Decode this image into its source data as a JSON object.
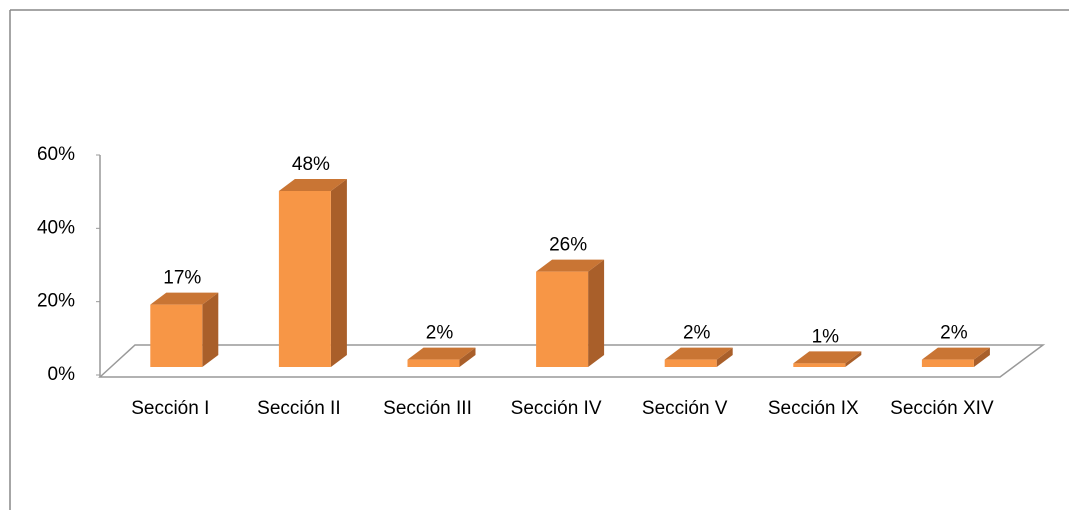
{
  "chart_data": {
    "type": "bar3d",
    "categories": [
      "Sección I",
      "Sección II",
      "Sección III",
      "Sección IV",
      "Sección V",
      "Sección IX",
      "Sección XIV"
    ],
    "values": [
      17,
      48,
      2,
      26,
      2,
      1,
      2
    ],
    "value_labels": [
      "17%",
      "48%",
      "2%",
      "26%",
      "2%",
      "1%",
      "2%"
    ],
    "color": "#f79646",
    "ylim": [
      0,
      60
    ],
    "yticks": [
      {
        "value": 0,
        "label": "0%"
      },
      {
        "value": 20,
        "label": "20%"
      },
      {
        "value": 40,
        "label": "40%"
      },
      {
        "value": 60,
        "label": "60%"
      }
    ],
    "grid": false
  }
}
